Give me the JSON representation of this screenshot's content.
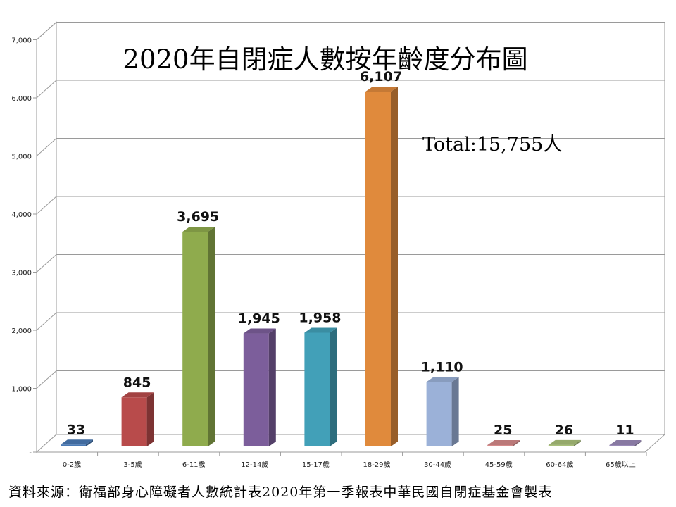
{
  "chart_data": {
    "type": "bar",
    "title": "2020年自閉症人數按年齡度分布圖",
    "annotation": "Total:15,755人",
    "source": "資料來源：衛福部身心障礙者人數統計表2020年第一季報表中華民國自閉症基金會製表",
    "categories": [
      "0-2歲",
      "3-5歲",
      "6-11歲",
      "12-14歲",
      "15-17歲",
      "18-29歲",
      "30-44歲",
      "45-59歲",
      "60-64歲",
      "65歲以上"
    ],
    "values": [
      33,
      845,
      3695,
      1945,
      1958,
      6107,
      1110,
      25,
      26,
      11
    ],
    "value_labels": [
      "33",
      "845",
      "3,695",
      "1,945",
      "1,958",
      "6,107",
      "1,110",
      "25",
      "26",
      "11"
    ],
    "colors": [
      "#4a7ab5",
      "#b84b4b",
      "#8fab4d",
      "#7c5e9b",
      "#42a0b8",
      "#e08a3c",
      "#9bb1d8",
      "#d58a8a",
      "#a9c07a",
      "#9a8ab8"
    ],
    "ylim": [
      0,
      7000
    ],
    "yticks": [
      0,
      1000,
      2000,
      3000,
      4000,
      5000,
      6000,
      7000
    ],
    "ytick_labels": [
      "-",
      "1,000",
      "2,000",
      "3,000",
      "4,000",
      "5,000",
      "6,000",
      "7,000"
    ],
    "xlabel": "",
    "ylabel": "",
    "grid": true,
    "legend": "none"
  }
}
